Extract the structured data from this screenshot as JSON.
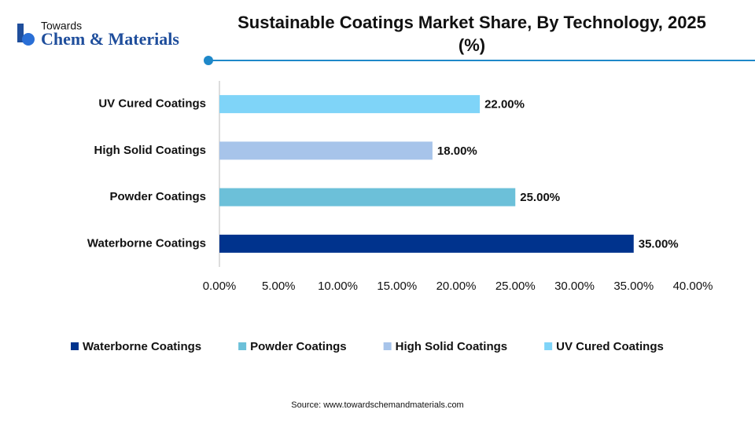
{
  "logo": {
    "top": "Towards",
    "main": "Chem & Materials"
  },
  "chart_data": {
    "type": "bar",
    "orientation": "horizontal",
    "title": "Sustainable Coatings Market Share, By Technology, 2025 (%)",
    "categories": [
      "Waterborne Coatings",
      "Powder Coatings",
      "High Solid Coatings",
      "UV Cured Coatings"
    ],
    "values": [
      35,
      25,
      18,
      22
    ],
    "value_labels": [
      "35.00%",
      "25.00%",
      "18.00%",
      "22.00%"
    ],
    "colors": [
      "#00338d",
      "#6cc0d9",
      "#a7c4ea",
      "#7fd4f8"
    ],
    "xlim": [
      0,
      40
    ],
    "xticks": [
      {
        "value": 0,
        "label": "0.00%"
      },
      {
        "value": 5,
        "label": "5.00%"
      },
      {
        "value": 10,
        "label": "10.00%"
      },
      {
        "value": 15,
        "label": "15.00%"
      },
      {
        "value": 20,
        "label": "20.00%"
      },
      {
        "value": 25,
        "label": "25.00%"
      },
      {
        "value": 30,
        "label": "30.00%"
      },
      {
        "value": 35,
        "label": "35.00%"
      },
      {
        "value": 40,
        "label": "40.00%"
      }
    ],
    "legend": "bottom",
    "source": "Source: www.towardschemandmaterials.com"
  }
}
